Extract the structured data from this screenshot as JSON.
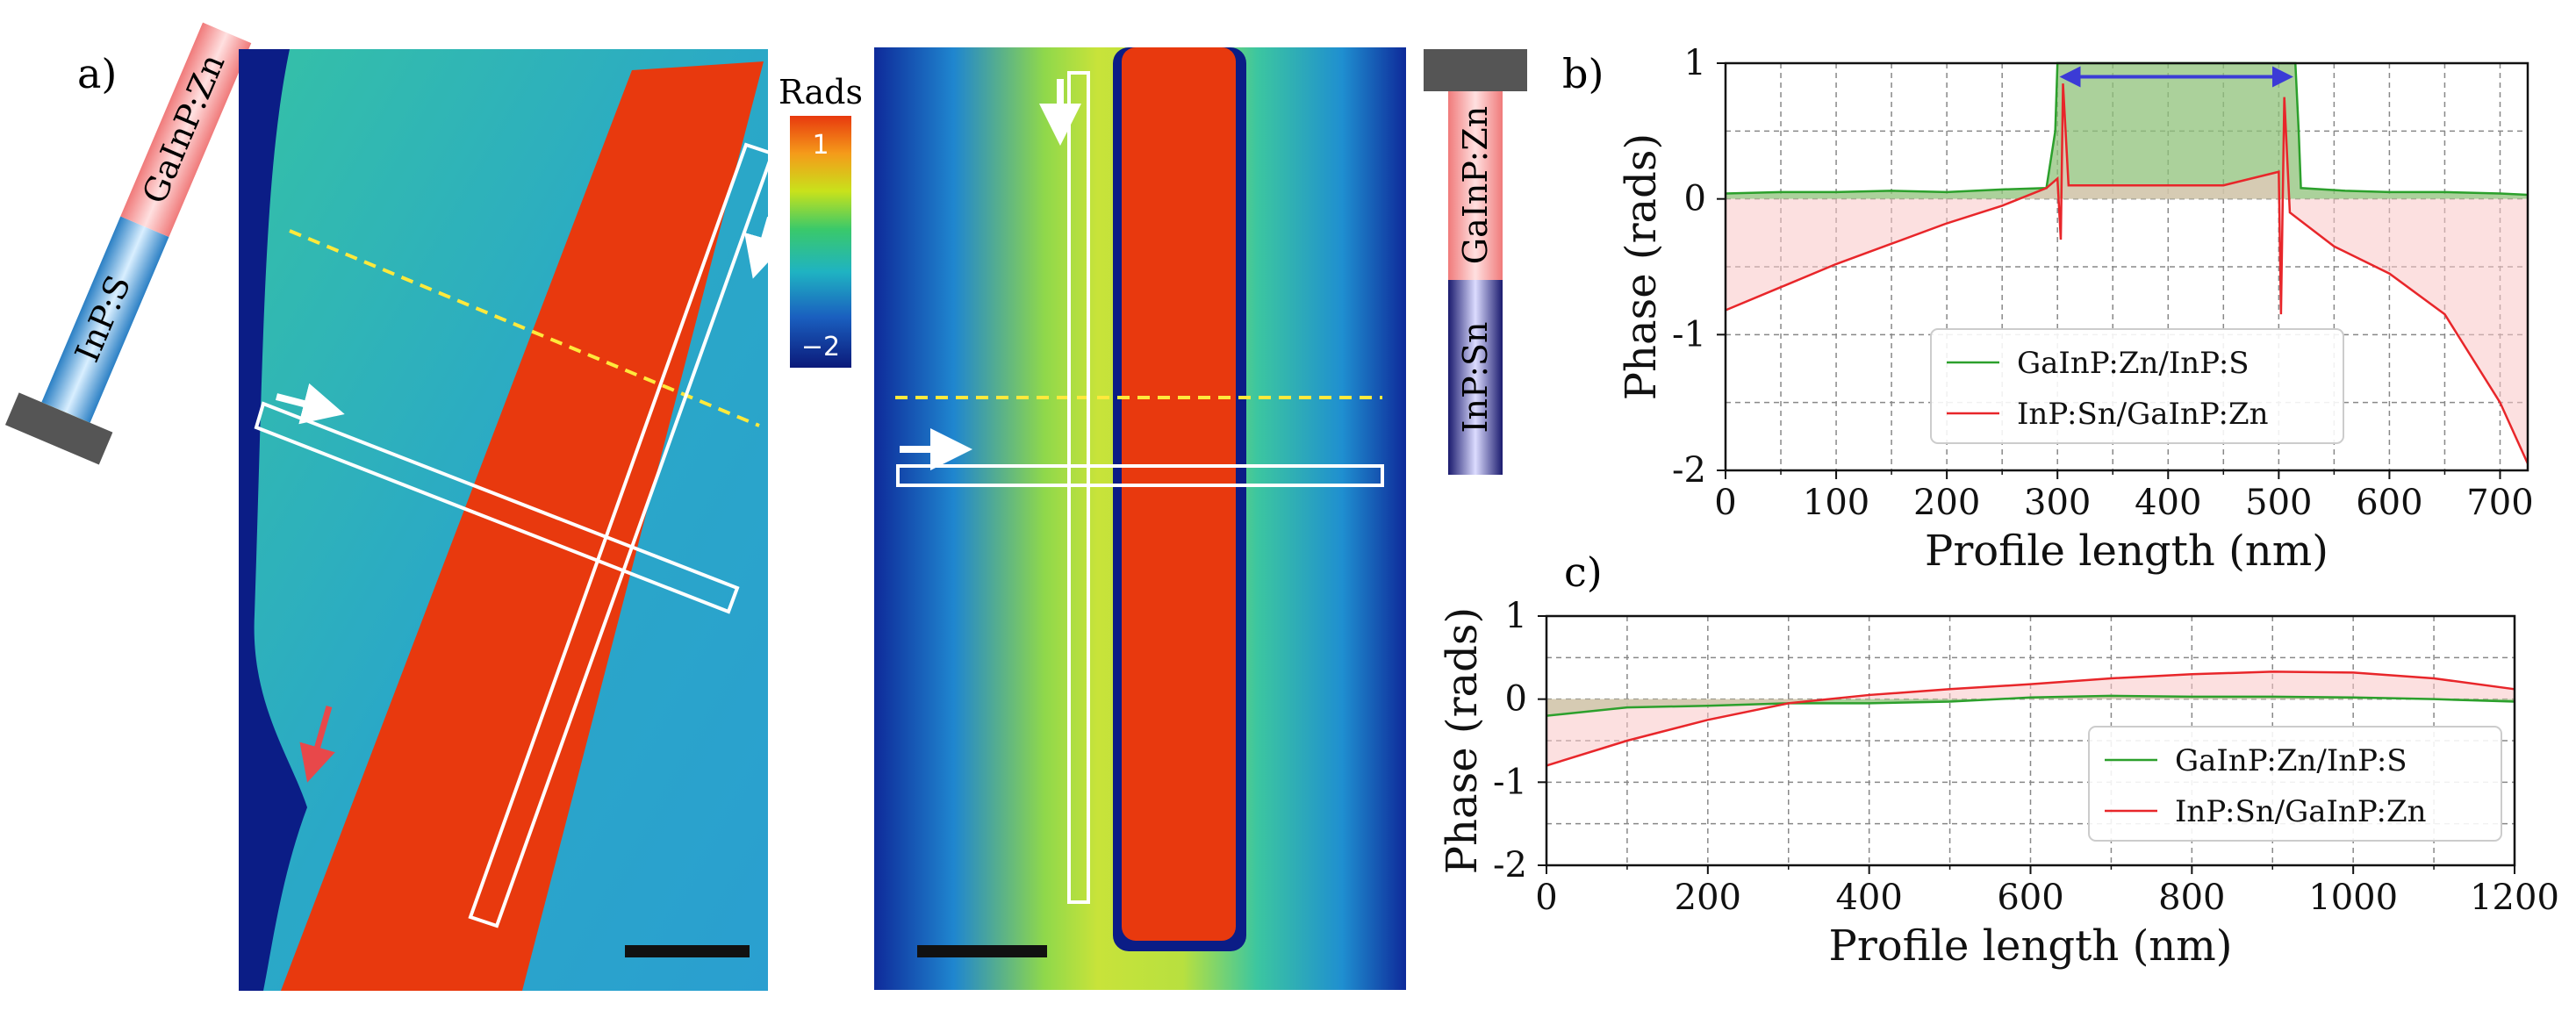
{
  "panel_labels": {
    "a": "a)",
    "b": "b)",
    "c": "c)"
  },
  "nanowire_schematic_1": {
    "top_segment": "GaInP:Zn",
    "bottom_segment": "InP:S"
  },
  "nanowire_schematic_2": {
    "top_segment": "GaInP:Zn",
    "bottom_segment": "InP:Sn"
  },
  "colorbar": {
    "title": "Rads",
    "max_label": "1",
    "min_label": "−2"
  },
  "colors": {
    "green_series": "#2ca02c",
    "red_series": "#e8262a",
    "red_fill": "#f9c6c7",
    "green_fill": "#8fc27a",
    "arrow_blue": "#3b3bd6",
    "map_red": "#e8390e",
    "map_background": "#2fb3b9"
  },
  "chart_data": [
    {
      "id": "b",
      "type": "line",
      "title": "",
      "xlabel": "Profile length (nm)",
      "ylabel": "Phase (rads)",
      "xlim": [
        0,
        725
      ],
      "ylim": [
        -2,
        1
      ],
      "xticks": [
        "0",
        "100",
        "200",
        "300",
        "400",
        "500",
        "600",
        "700"
      ],
      "yticks": [
        "1",
        "0",
        "-1",
        "-2"
      ],
      "grid": true,
      "legend_position": "bottom-center",
      "series": [
        {
          "name": "GaInP:Zn/InP:S",
          "x": [
            0,
            50,
            100,
            150,
            200,
            250,
            290,
            298,
            300,
            350,
            400,
            450,
            500,
            515,
            518,
            520,
            560,
            600,
            650,
            700,
            725
          ],
          "y": [
            0.04,
            0.05,
            0.05,
            0.06,
            0.05,
            0.07,
            0.08,
            0.5,
            1.0,
            1.0,
            1.0,
            1.0,
            1.0,
            1.0,
            0.5,
            0.08,
            0.06,
            0.05,
            0.05,
            0.04,
            0.03
          ]
        },
        {
          "name": "InP:Sn/GaInP:Zn",
          "x": [
            0,
            50,
            100,
            150,
            200,
            250,
            290,
            300,
            303,
            305,
            310,
            350,
            400,
            450,
            500,
            502,
            505,
            510,
            550,
            600,
            650,
            700,
            725
          ],
          "y": [
            -0.82,
            -0.65,
            -0.48,
            -0.33,
            -0.18,
            -0.05,
            0.08,
            0.15,
            -0.3,
            0.85,
            0.1,
            0.1,
            0.1,
            0.1,
            0.2,
            -0.85,
            0.75,
            -0.1,
            -0.35,
            -0.55,
            -0.85,
            -1.5,
            -1.95
          ]
        }
      ],
      "annotation": "double-headed arrow spanning 300-515 nm at y≈0.9"
    },
    {
      "id": "c",
      "type": "line",
      "title": "",
      "xlabel": "Profile length (nm)",
      "ylabel": "Phase (rads)",
      "xlim": [
        0,
        1200
      ],
      "ylim": [
        -2,
        1
      ],
      "xticks": [
        "0",
        "200",
        "400",
        "600",
        "800",
        "1000",
        "1200"
      ],
      "yticks": [
        "1",
        "0",
        "-1",
        "-2"
      ],
      "grid": true,
      "legend_position": "bottom-right",
      "series": [
        {
          "name": "GaInP:Zn/InP:S",
          "x": [
            0,
            100,
            200,
            300,
            400,
            500,
            600,
            700,
            800,
            900,
            1000,
            1100,
            1200
          ],
          "y": [
            -0.2,
            -0.1,
            -0.08,
            -0.05,
            -0.05,
            -0.03,
            0.02,
            0.04,
            0.03,
            0.03,
            0.02,
            0.0,
            -0.03
          ]
        },
        {
          "name": "InP:Sn/GaInP:Zn",
          "x": [
            0,
            100,
            200,
            300,
            400,
            500,
            600,
            700,
            800,
            900,
            1000,
            1100,
            1200
          ],
          "y": [
            -0.8,
            -0.5,
            -0.25,
            -0.05,
            0.05,
            0.12,
            0.18,
            0.25,
            0.3,
            0.33,
            0.32,
            0.25,
            0.12
          ]
        }
      ]
    }
  ]
}
